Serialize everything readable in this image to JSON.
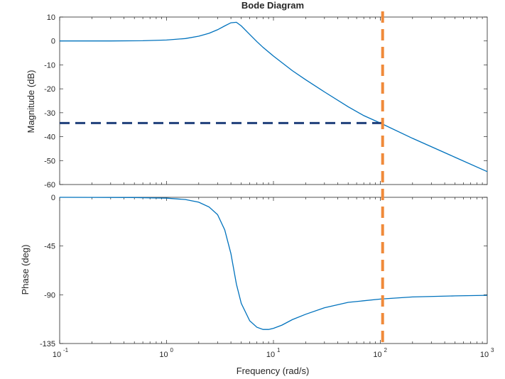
{
  "chart_data": [
    {
      "type": "line",
      "title": "Bode Diagram",
      "xlabel": "Frequency  (rad/s)",
      "ylabel": "Magnitude (dB)",
      "xscale": "log",
      "xlim": [
        0.1,
        1000
      ],
      "ylim": [
        -60,
        10
      ],
      "yticks": [
        10,
        0,
        -10,
        -20,
        -30,
        -40,
        -50,
        -60
      ],
      "grid": false,
      "series": [
        {
          "x": [
            0.1,
            0.3,
            0.6,
            1,
            1.5,
            2,
            2.5,
            3,
            3.5,
            4,
            4.5,
            5,
            6,
            7,
            8,
            10,
            15,
            20,
            30,
            50,
            70,
            100,
            200,
            500,
            1000
          ],
          "y": [
            0,
            0,
            0.1,
            0.4,
            1,
            2,
            3.2,
            4.7,
            6.3,
            7.6,
            7.8,
            6.3,
            2.7,
            -0.3,
            -2.7,
            -6.3,
            -12.4,
            -16.2,
            -21.3,
            -27.5,
            -31.2,
            -34.3,
            -40.7,
            -48.6,
            -54.6
          ],
          "color": "#0072BD"
        }
      ],
      "reference_lines": [
        {
          "orientation": "horizontal",
          "y": -34.3,
          "style": "dashed",
          "color": "#1F3F7A"
        },
        {
          "orientation": "vertical",
          "x": 105,
          "style": "dashed",
          "color": "#F08A3A"
        }
      ]
    },
    {
      "type": "line",
      "xlabel": "Frequency  (rad/s)",
      "ylabel": "Phase (deg)",
      "xscale": "log",
      "xlim": [
        0.1,
        1000
      ],
      "ylim": [
        -135,
        0
      ],
      "yticks": [
        0,
        -45,
        -90,
        -135
      ],
      "xticks": [
        "10",
        "10",
        "10",
        "10",
        "10"
      ],
      "xtick_exponents": [
        "-1",
        "0",
        "1",
        "2",
        "3"
      ],
      "grid": false,
      "series": [
        {
          "x": [
            0.1,
            0.5,
            1,
            1.5,
            2,
            2.5,
            3,
            3.5,
            4,
            4.5,
            5,
            6,
            7,
            8,
            9,
            10,
            12,
            15,
            20,
            30,
            50,
            100,
            200,
            500,
            1000
          ],
          "y": [
            0,
            -0.2,
            -0.8,
            -2,
            -4.5,
            -9,
            -16,
            -30,
            -52,
            -80,
            -98,
            -114,
            -120,
            -122,
            -122,
            -121,
            -118,
            -113,
            -108,
            -102,
            -97,
            -94,
            -92,
            -91,
            -90.5
          ],
          "color": "#0072BD"
        }
      ],
      "reference_lines": [
        {
          "orientation": "vertical",
          "x": 105,
          "style": "dashed",
          "color": "#F08A3A"
        }
      ]
    }
  ]
}
